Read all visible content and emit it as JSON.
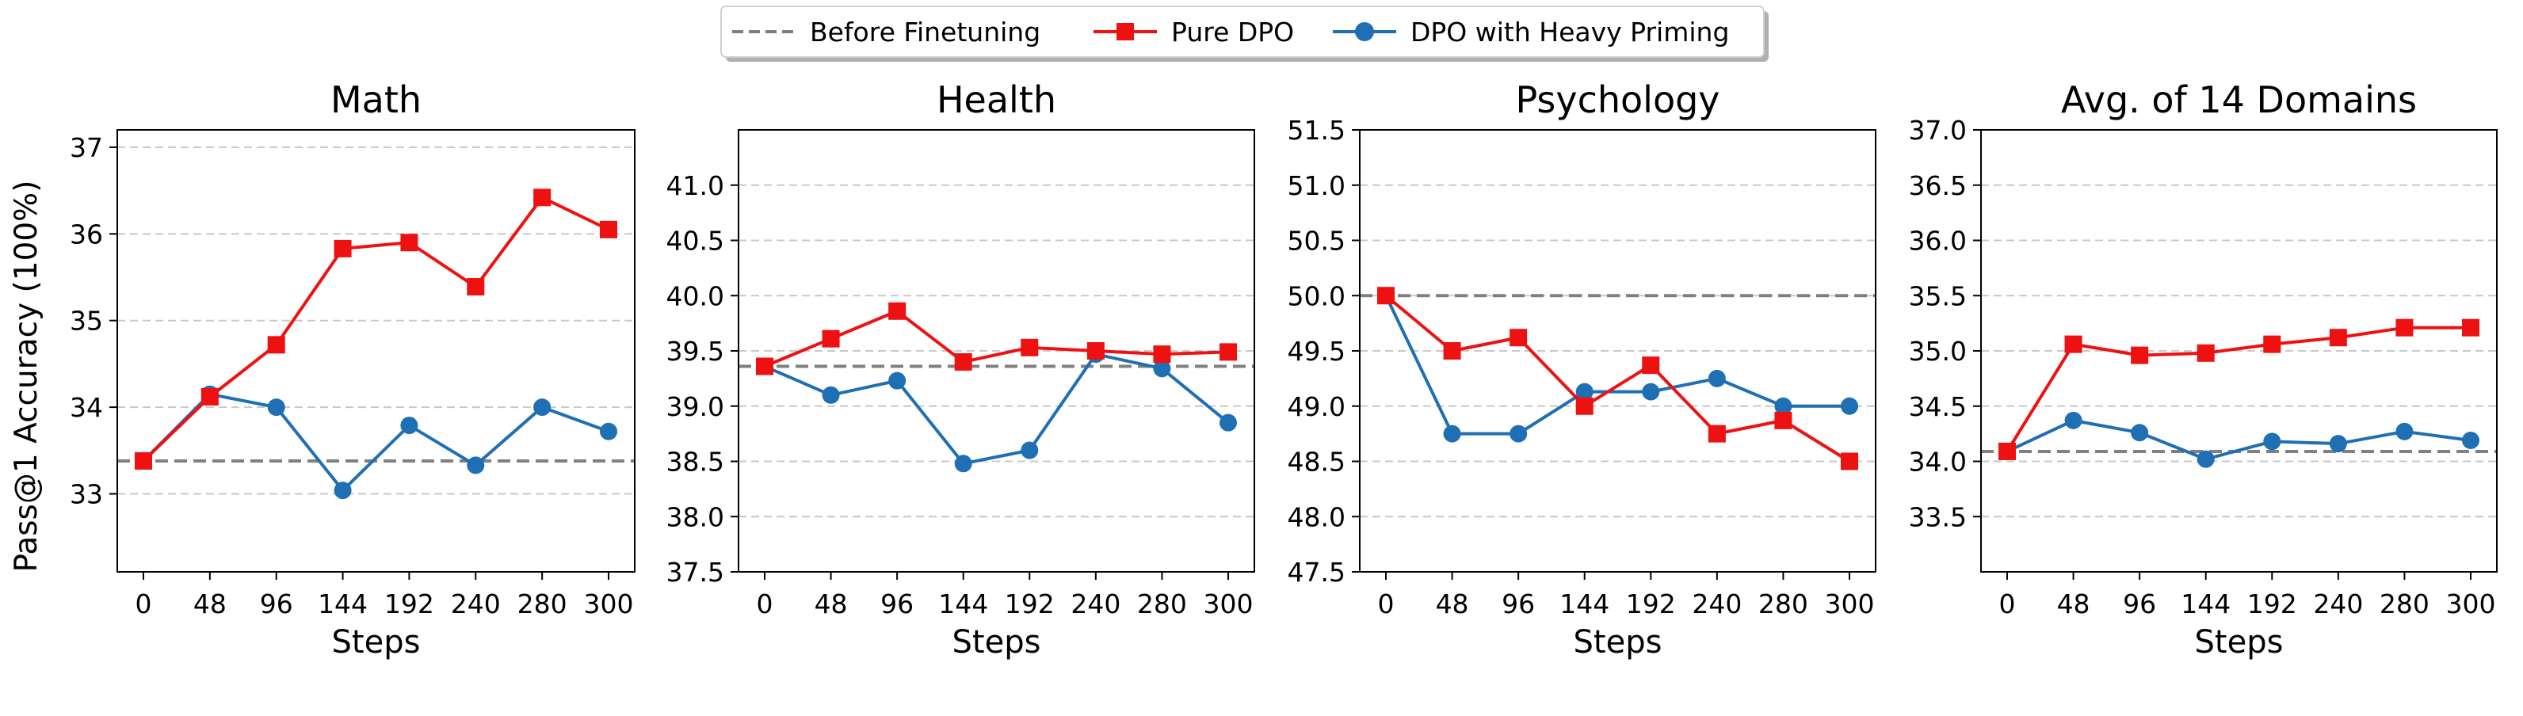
{
  "legend": {
    "items": [
      {
        "label": "Before Finetuning",
        "color": "#808080",
        "style": "dashed",
        "marker": "none"
      },
      {
        "label": "Pure DPO",
        "color": "#ee1111",
        "style": "solid",
        "marker": "square"
      },
      {
        "label": "DPO with Heavy Priming",
        "color": "#1f6fb4",
        "style": "solid",
        "marker": "circle"
      }
    ]
  },
  "ylabel": "Pass@1 Accuracy (100%)",
  "chart_data": [
    {
      "type": "line",
      "title": "Math",
      "xlabel": "Steps",
      "x": [
        "0",
        "48",
        "96",
        "144",
        "192",
        "240",
        "280",
        "300"
      ],
      "ylim": [
        32.1,
        37.2
      ],
      "yticks": [
        "33",
        "34",
        "35",
        "36",
        "37"
      ],
      "grid": "horizontal dashed",
      "baseline": 33.38,
      "series": [
        {
          "name": "Pure DPO",
          "values": [
            33.38,
            34.12,
            34.72,
            35.83,
            35.9,
            35.39,
            36.42,
            36.05
          ]
        },
        {
          "name": "DPO with Heavy Priming",
          "values": [
            33.38,
            34.15,
            34.0,
            33.04,
            33.79,
            33.33,
            34.0,
            33.72
          ]
        }
      ]
    },
    {
      "type": "line",
      "title": "Health",
      "xlabel": "Steps",
      "x": [
        "0",
        "48",
        "96",
        "144",
        "192",
        "240",
        "280",
        "300"
      ],
      "ylim": [
        37.5,
        41.5
      ],
      "yticks": [
        "37.5",
        "38.0",
        "38.5",
        "39.0",
        "39.5",
        "40.0",
        "40.5",
        "41.0"
      ],
      "grid": "horizontal dashed",
      "baseline": 39.36,
      "series": [
        {
          "name": "Pure DPO",
          "values": [
            39.36,
            39.61,
            39.86,
            39.4,
            39.53,
            39.5,
            39.47,
            39.49
          ]
        },
        {
          "name": "DPO with Heavy Priming",
          "values": [
            39.36,
            39.1,
            39.23,
            38.48,
            38.6,
            39.47,
            39.34,
            38.85
          ]
        }
      ]
    },
    {
      "type": "line",
      "title": "Psychology",
      "xlabel": "Steps",
      "x": [
        "0",
        "48",
        "96",
        "144",
        "192",
        "240",
        "280",
        "300"
      ],
      "ylim": [
        47.5,
        51.5
      ],
      "yticks": [
        "47.5",
        "48.0",
        "48.5",
        "49.0",
        "49.5",
        "50.0",
        "50.5",
        "51.0",
        "51.5"
      ],
      "grid": "horizontal dashed",
      "baseline": 50.0,
      "series": [
        {
          "name": "Pure DPO",
          "values": [
            50.0,
            49.5,
            49.62,
            49.0,
            49.37,
            48.75,
            48.87,
            48.5
          ]
        },
        {
          "name": "DPO with Heavy Priming",
          "values": [
            50.0,
            48.75,
            48.75,
            49.13,
            49.13,
            49.25,
            49.0,
            49.0
          ]
        }
      ]
    },
    {
      "type": "line",
      "title": "Avg. of 14 Domains",
      "xlabel": "Steps",
      "x": [
        "0",
        "48",
        "96",
        "144",
        "192",
        "240",
        "280",
        "300"
      ],
      "ylim": [
        33.0,
        37.0
      ],
      "yticks": [
        "33.5",
        "34.0",
        "34.5",
        "35.0",
        "35.5",
        "36.0",
        "36.5",
        "37.0"
      ],
      "grid": "horizontal dashed",
      "baseline": 34.09,
      "series": [
        {
          "name": "Pure DPO",
          "values": [
            34.09,
            35.06,
            34.96,
            34.98,
            35.06,
            35.12,
            35.21,
            35.21
          ]
        },
        {
          "name": "DPO with Heavy Priming",
          "values": [
            34.09,
            34.37,
            34.26,
            34.02,
            34.18,
            34.16,
            34.27,
            34.19
          ]
        }
      ]
    }
  ]
}
